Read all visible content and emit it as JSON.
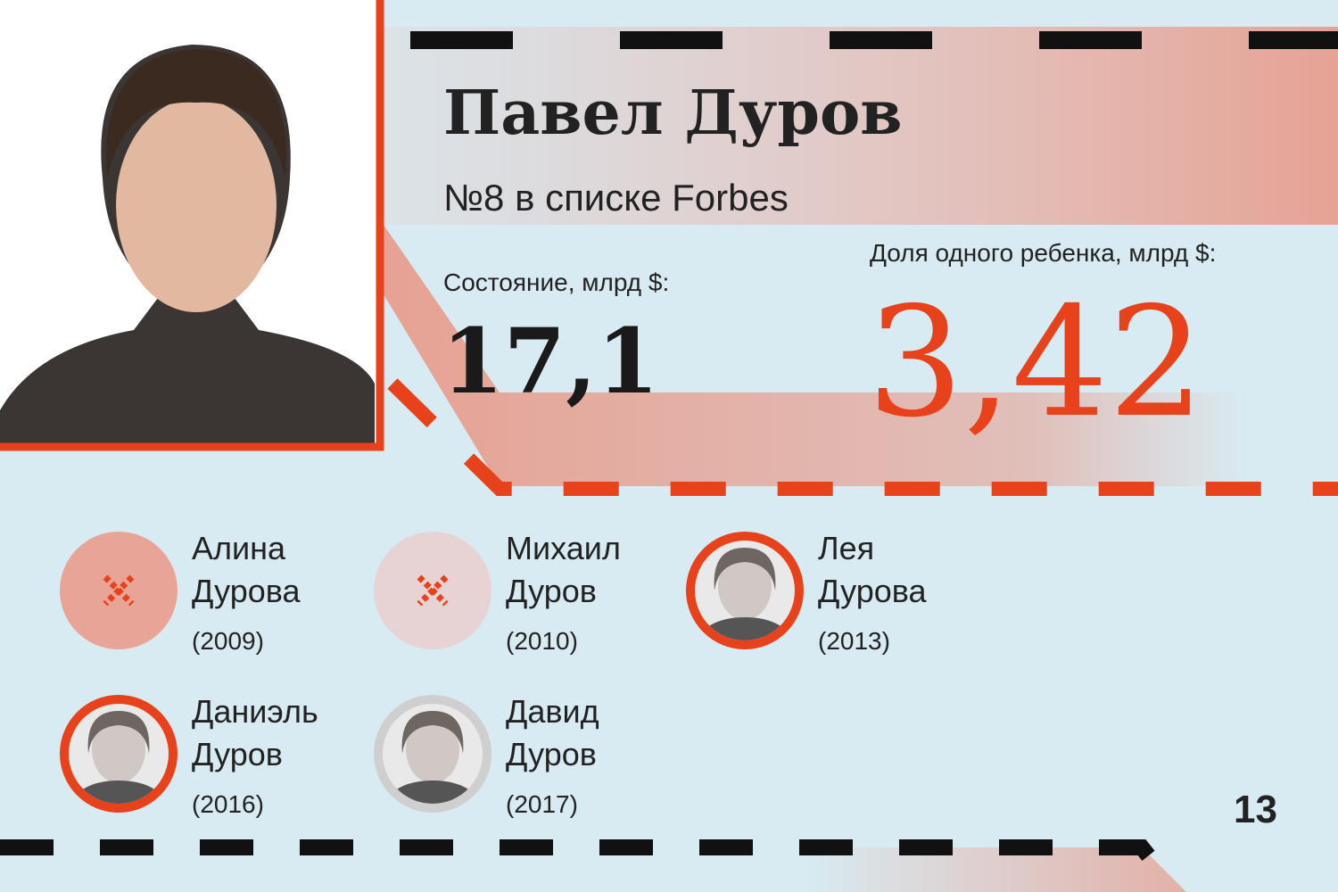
{
  "header": {
    "name": "Павел Дуров",
    "subtitle": "№8 в списке Forbes"
  },
  "wealth": {
    "label": "Состояние, млрд $:",
    "value": "17,1"
  },
  "share": {
    "label": "Доля одного ребенка, млрд $:",
    "value": "3,42"
  },
  "children": [
    {
      "first": "Алина",
      "last": "Дурова",
      "year": "(2009)"
    },
    {
      "first": "Михаил",
      "last": "Дуров",
      "year": "(2010)"
    },
    {
      "first": "Лея",
      "last": "Дурова",
      "year": "(2013)"
    },
    {
      "first": "Даниэль",
      "last": "Дуров",
      "year": "(2016)"
    },
    {
      "first": "Давид",
      "last": "Дуров",
      "year": "(2017)"
    }
  ],
  "page_number": "13"
}
